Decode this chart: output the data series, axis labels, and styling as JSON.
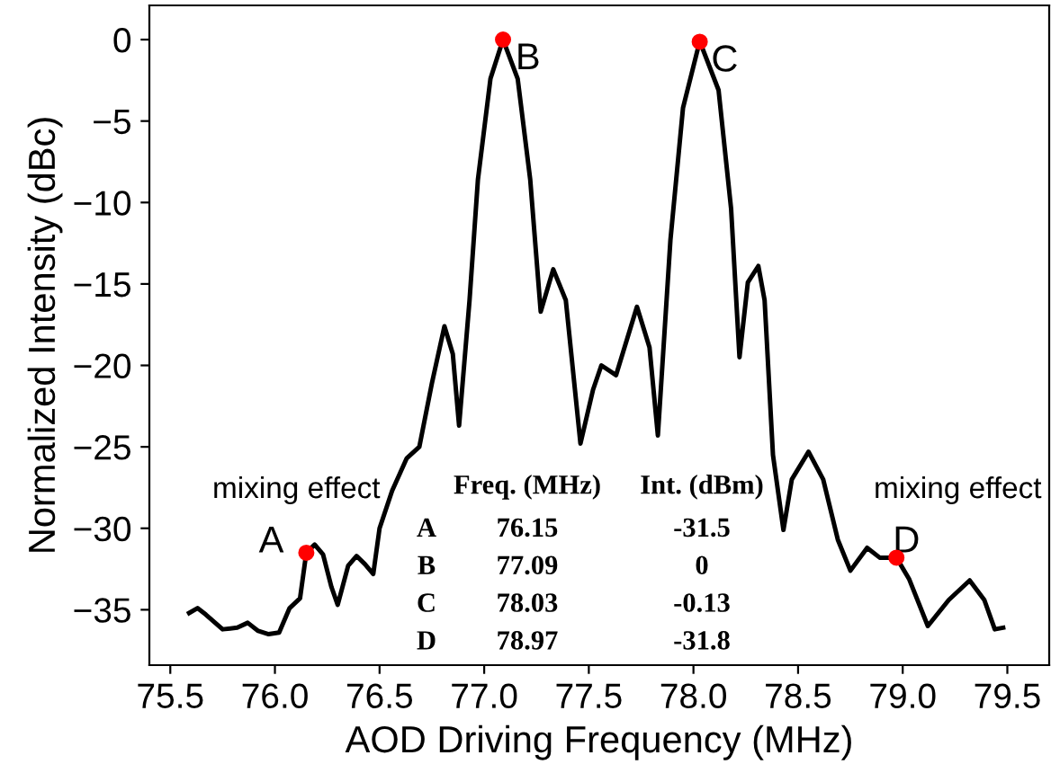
{
  "chart_data": {
    "type": "line",
    "xlabel": "AOD Driving Frequency (MHz)",
    "ylabel": "Normalized Intensity (dBc)",
    "xlim": [
      75.4,
      79.7
    ],
    "ylim": [
      -38.4,
      2.1
    ],
    "xticks": [
      75.5,
      {
        "value": 76,
        "label": "76.0"
      },
      76.5,
      {
        "value": 77,
        "label": "77.0"
      },
      77.5,
      {
        "value": 78,
        "label": "78.0"
      },
      78.5,
      {
        "value": 79,
        "label": "79.0"
      },
      79.5
    ],
    "yticks": [
      {
        "value": 0,
        "label": "0"
      },
      {
        "value": -5,
        "label": "−5"
      },
      {
        "value": -10,
        "label": "−10"
      },
      {
        "value": -15,
        "label": "−15"
      },
      {
        "value": -20,
        "label": "−20"
      },
      {
        "value": -25,
        "label": "−25"
      },
      {
        "value": -30,
        "label": "−30"
      },
      {
        "value": -35,
        "label": "−35"
      }
    ],
    "grid": false,
    "legend": false,
    "series": [
      {
        "color": "#000000",
        "marker": "none",
        "line_style": "solid",
        "x": [
          75.59,
          75.63,
          75.67,
          75.75,
          75.82,
          75.87,
          75.92,
          75.97,
          76.02,
          76.07,
          76.12,
          76.15,
          76.19,
          76.23,
          76.27,
          76.3,
          76.35,
          76.39,
          76.43,
          76.47,
          76.5,
          76.56,
          76.63,
          76.69,
          76.75,
          76.81,
          76.85,
          76.88,
          76.93,
          76.97,
          77.03,
          77.09,
          77.16,
          77.22,
          77.27,
          77.33,
          77.39,
          77.46,
          77.52,
          77.56,
          77.63,
          77.73,
          77.79,
          77.83,
          77.89,
          77.95,
          78.03,
          78.12,
          78.18,
          78.22,
          78.26,
          78.31,
          78.34,
          78.38,
          78.43,
          78.47,
          78.55,
          78.62,
          78.69,
          78.75,
          78.83,
          78.89,
          78.97,
          79.03,
          79.12,
          79.22,
          79.32,
          79.39,
          79.44,
          79.48
        ],
        "values": [
          -35.2,
          -34.9,
          -35.3,
          -36.2,
          -36.1,
          -35.8,
          -36.3,
          -36.5,
          -36.4,
          -34.9,
          -34.3,
          -31.5,
          -31.0,
          -31.6,
          -33.6,
          -34.7,
          -32.3,
          -31.7,
          -32.2,
          -32.8,
          -30.0,
          -27.7,
          -25.7,
          -25.0,
          -21.1,
          -17.6,
          -19.3,
          -23.7,
          -16.0,
          -8.6,
          -2.4,
          0,
          -2.4,
          -8.6,
          -16.7,
          -14.1,
          -16.0,
          -24.8,
          -21.5,
          -20.0,
          -20.6,
          -16.4,
          -18.9,
          -24.3,
          -12.3,
          -4.2,
          -0.1,
          -3.1,
          -10.4,
          -19.5,
          -14.9,
          -13.9,
          -16.0,
          -25.5,
          -30.1,
          -27.0,
          -25.3,
          -27.0,
          -30.7,
          -32.6,
          -31.2,
          -31.8,
          -31.8,
          -33.1,
          -36.0,
          -34.4,
          -33.2,
          -34.4,
          -36.2,
          -36.1
        ]
      },
      {
        "type": "scatter",
        "color": "#ff0000",
        "marker": "circle",
        "x": [
          76.15,
          77.09,
          78.03,
          78.97
        ],
        "values": [
          -31.5,
          0,
          -0.13,
          -31.8
        ],
        "value_labels": [
          "A",
          "B",
          "C",
          "D"
        ]
      }
    ],
    "annotations": [
      "mixing effect",
      "mixing effect",
      "Freq. (MHz)",
      "Int. (dBm)",
      "A",
      "76.15",
      "-31.5",
      "B",
      "77.09",
      "0",
      "C",
      "78.03",
      "-0.13",
      "D",
      "78.97",
      "-31.8"
    ]
  }
}
